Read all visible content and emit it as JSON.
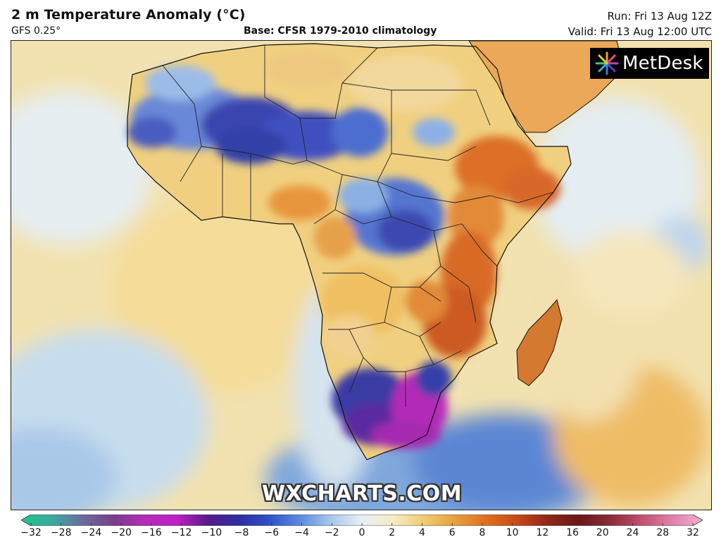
{
  "header": {
    "title": "2 m Temperature Anomaly (°C)",
    "model": "GFS 0.25°",
    "base": "Base: CFSR 1979-2010 climatology",
    "run": "Run: Fri 13 Aug 12Z",
    "valid": "Valid: Fri 13 Aug 12:00 UTC"
  },
  "branding": {
    "logo_text": "MetDesk",
    "watermark": "WXCHARTS.COM"
  },
  "legend": {
    "ticks": [
      "−32",
      "−28",
      "−24",
      "−20",
      "−16",
      "−12",
      "−10",
      "−8",
      "−6",
      "−4",
      "−2",
      "0",
      "2",
      "4",
      "6",
      "8",
      "10",
      "12",
      "16",
      "20",
      "24",
      "28",
      "32"
    ],
    "colors": [
      "#1fc48c",
      "#3ca9a0",
      "#6c6c9e",
      "#7a3c8c",
      "#b52cb8",
      "#c020c8",
      "#5a1a8a",
      "#2e2ea0",
      "#3050c8",
      "#5c8ae0",
      "#a8c8ec",
      "#e8f0f4",
      "#f4ecc4",
      "#f0cc70",
      "#e8a040",
      "#e07020",
      "#c84818",
      "#902818",
      "#6a1818",
      "#8a2a3a",
      "#c05070",
      "#e080a8",
      "#f0b0d0"
    ]
  },
  "colors": {
    "ocean_neutral": "#f4e6b8",
    "warm": "#e8902c",
    "hot": "#c8501c",
    "cool": "#8cb4e4",
    "cold": "#3258c4",
    "very_cold": "#5a2a9c",
    "extreme_cold": "#c030c8"
  }
}
